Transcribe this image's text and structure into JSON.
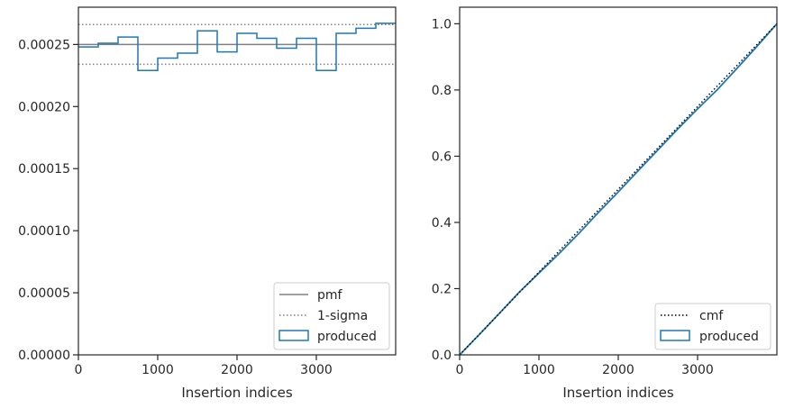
{
  "chart_data": [
    {
      "type": "histogram",
      "xlabel": "Insertion indices",
      "ylabel": "",
      "xlim": [
        0,
        4000
      ],
      "ylim": [
        0,
        0.00028
      ],
      "xticks": [
        0,
        1000,
        2000,
        3000
      ],
      "xtick_labels": [
        "0",
        "1000",
        "2000",
        "3000"
      ],
      "yticks": [
        0,
        5e-05,
        0.0001,
        0.00015,
        0.0002,
        0.00025
      ],
      "ytick_labels": [
        "0.00000",
        "0.00005",
        "0.00010",
        "0.00015",
        "0.00020",
        "0.00025"
      ],
      "grid": false,
      "legend_position": "bottom-right",
      "legend": [
        "pmf",
        "1-sigma",
        "produced"
      ],
      "pmf": 0.00025,
      "sigma_upper": 0.000266,
      "sigma_lower": 0.000234,
      "bin_edges": [
        0,
        250,
        500,
        750,
        1000,
        1250,
        1500,
        1750,
        2000,
        2250,
        2500,
        2750,
        3000,
        3250,
        3500,
        3750,
        4000
      ],
      "values": [
        0.000248,
        0.000251,
        0.000256,
        0.000229,
        0.000239,
        0.000243,
        0.000261,
        0.000244,
        0.000259,
        0.000255,
        0.000247,
        0.000255,
        0.000229,
        0.000259,
        0.000263,
        0.000267
      ],
      "colors": {
        "produced": "#1f77b4",
        "pmf": "#808080",
        "sigma": "#808080"
      }
    },
    {
      "type": "line",
      "xlabel": "Insertion indices",
      "ylabel": "",
      "xlim": [
        0,
        4000
      ],
      "ylim": [
        0,
        1.05
      ],
      "xticks": [
        0,
        1000,
        2000,
        3000
      ],
      "xtick_labels": [
        "0",
        "1000",
        "2000",
        "3000"
      ],
      "yticks": [
        0,
        0.2,
        0.4,
        0.6,
        0.8,
        1.0
      ],
      "ytick_labels": [
        "0.0",
        "0.2",
        "0.4",
        "0.6",
        "0.8",
        "1.0"
      ],
      "grid": false,
      "legend_position": "bottom-right",
      "legend": [
        "cmf",
        "produced"
      ],
      "series": [
        {
          "name": "cmf",
          "x": [
            0,
            4000
          ],
          "y": [
            0,
            1.0
          ]
        },
        {
          "name": "produced",
          "x": [
            0,
            250,
            500,
            750,
            1000,
            1250,
            1500,
            1750,
            2000,
            2250,
            2500,
            2750,
            3000,
            3250,
            3500,
            3750,
            4000
          ],
          "y": [
            0,
            0.062,
            0.125,
            0.189,
            0.247,
            0.305,
            0.366,
            0.43,
            0.492,
            0.556,
            0.619,
            0.682,
            0.743,
            0.801,
            0.866,
            0.932,
            1.0
          ]
        }
      ],
      "colors": {
        "produced": "#1f77b4",
        "cmf": "#000000"
      }
    }
  ]
}
